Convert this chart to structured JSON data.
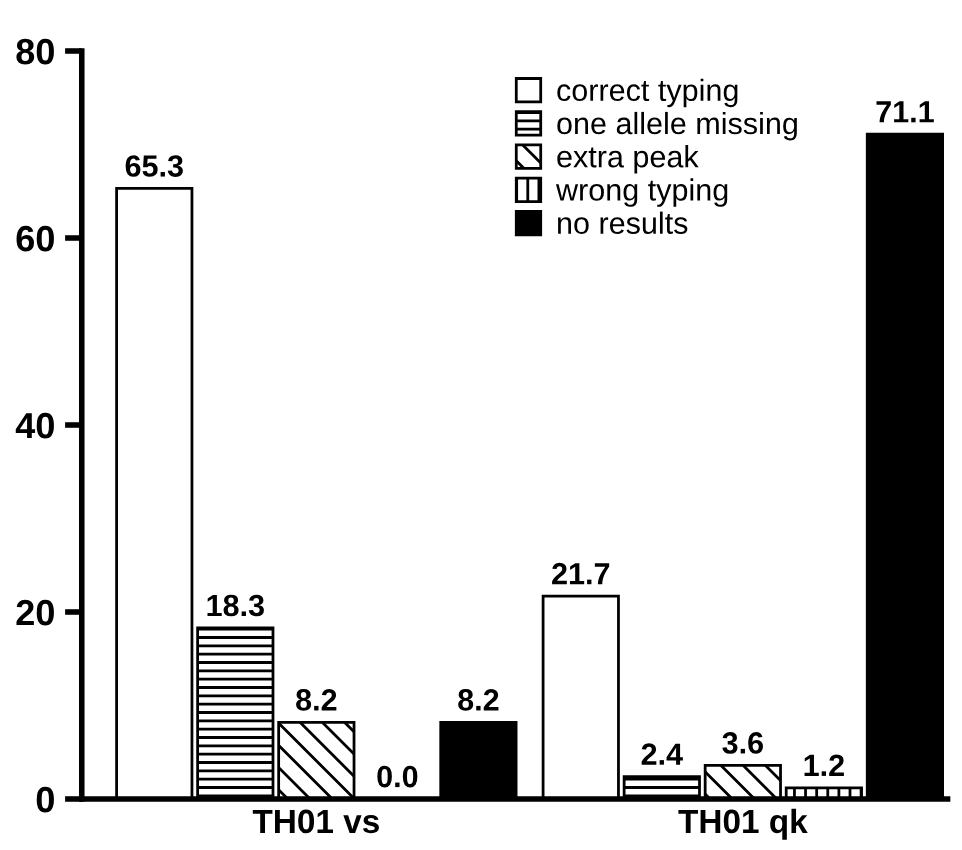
{
  "chart_data": {
    "type": "bar",
    "categories": [
      "TH01 vs",
      "TH01 qk"
    ],
    "series": [
      {
        "name": "correct typing",
        "color": "#ffffff",
        "values": [
          65.3,
          21.7
        ],
        "value_labels": [
          "65.3",
          "21.7"
        ]
      },
      {
        "name": "one allele missing",
        "color": "#000000",
        "values": [
          18.3,
          2.4
        ],
        "value_labels": [
          "18.3",
          "2.4"
        ]
      },
      {
        "name": "extra peak",
        "color": "#000000",
        "values": [
          8.2,
          3.6
        ],
        "value_labels": [
          "8.2",
          "3.6"
        ]
      },
      {
        "name": "wrong typing",
        "color": "#000000",
        "values": [
          0.0,
          1.2
        ],
        "value_labels": [
          "0.0",
          "1.2"
        ]
      },
      {
        "name": "no results",
        "color": "#000000",
        "values": [
          8.2,
          71.1
        ],
        "value_labels": [
          "8.2",
          "71.1"
        ]
      }
    ],
    "ylim": [
      0,
      80
    ],
    "yticks": [
      0,
      20,
      40,
      60,
      80
    ],
    "legend": "top right",
    "grid": false
  }
}
